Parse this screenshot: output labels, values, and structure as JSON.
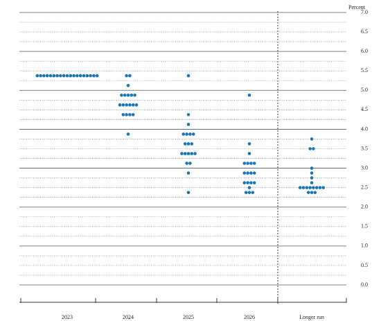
{
  "chart_data": {
    "type": "dot",
    "y_label": "Percent",
    "categories": [
      "2023",
      "2024",
      "2025",
      "2026",
      "Longer run"
    ],
    "dots": [
      [
        {
          "value": 5.375,
          "count": 19
        }
      ],
      [
        {
          "value": 5.375,
          "count": 2
        },
        {
          "value": 5.125,
          "count": 1
        },
        {
          "value": 4.875,
          "count": 5
        },
        {
          "value": 4.625,
          "count": 6
        },
        {
          "value": 4.375,
          "count": 4
        },
        {
          "value": 3.875,
          "count": 1
        }
      ],
      [
        {
          "value": 5.375,
          "count": 1
        },
        {
          "value": 4.375,
          "count": 1
        },
        {
          "value": 4.125,
          "count": 1
        },
        {
          "value": 3.875,
          "count": 4
        },
        {
          "value": 3.625,
          "count": 3
        },
        {
          "value": 3.375,
          "count": 5
        },
        {
          "value": 3.125,
          "count": 2
        },
        {
          "value": 2.875,
          "count": 1
        },
        {
          "value": 2.375,
          "count": 1
        }
      ],
      [
        {
          "value": 4.875,
          "count": 1
        },
        {
          "value": 3.625,
          "count": 1
        },
        {
          "value": 3.375,
          "count": 1
        },
        {
          "value": 3.125,
          "count": 4
        },
        {
          "value": 2.875,
          "count": 4
        },
        {
          "value": 2.625,
          "count": 4
        },
        {
          "value": 2.5,
          "count": 1
        },
        {
          "value": 2.375,
          "count": 3
        }
      ],
      [
        {
          "value": 3.75,
          "count": 1
        },
        {
          "value": 3.5,
          "count": 2
        },
        {
          "value": 3.0,
          "count": 1
        },
        {
          "value": 2.875,
          "count": 1
        },
        {
          "value": 2.75,
          "count": 1
        },
        {
          "value": 2.625,
          "count": 1
        },
        {
          "value": 2.5,
          "count": 8
        },
        {
          "value": 2.375,
          "count": 3
        }
      ]
    ],
    "color": "#1b75b3",
    "ylim": [
      0,
      7
    ],
    "yticks": [
      {
        "value": 0,
        "label": "0.0"
      },
      {
        "value": 0.5,
        "label": "0.5"
      },
      {
        "value": 1,
        "label": "1.0"
      },
      {
        "value": 1.5,
        "label": "1.5"
      },
      {
        "value": 2,
        "label": "2.0"
      },
      {
        "value": 2.5,
        "label": "2.5"
      },
      {
        "value": 3,
        "label": "3.0"
      },
      {
        "value": 3.5,
        "label": "3.5"
      },
      {
        "value": 4,
        "label": "4.0"
      },
      {
        "value": 4.5,
        "label": "4.5"
      },
      {
        "value": 5,
        "label": "5.0"
      },
      {
        "value": 5.5,
        "label": "5.5"
      },
      {
        "value": 6,
        "label": "6.0"
      },
      {
        "value": 6.5,
        "label": "6.5"
      },
      {
        "value": 7,
        "label": "7.0"
      }
    ],
    "minor_yticks": [
      0.25,
      0.75,
      1.25,
      1.75,
      2.25,
      2.75,
      3.25,
      3.75,
      4.25,
      4.75,
      5.25,
      5.75,
      6.25,
      6.75
    ],
    "grid": true
  }
}
